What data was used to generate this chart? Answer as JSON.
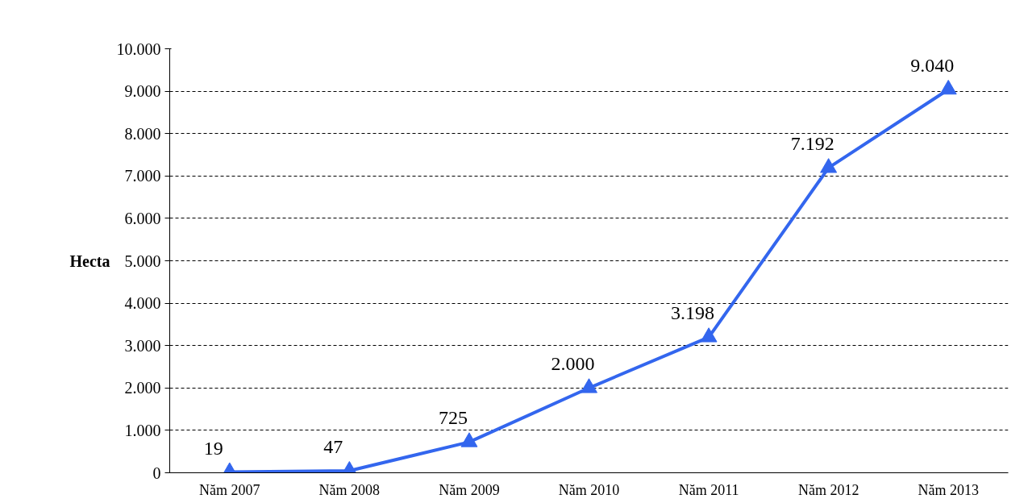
{
  "chart_data": {
    "type": "line",
    "ylabel": "Hecta",
    "categories": [
      "Năm 2007",
      "Năm 2008",
      "Năm 2009",
      "Năm 2010",
      "Năm 2011",
      "Năm 2012",
      "Năm 2013"
    ],
    "series": [
      {
        "color": "#3366ee",
        "values": [
          19,
          47,
          725,
          2000,
          3198,
          7192,
          9040
        ],
        "value_labels": [
          "19",
          "47",
          "725",
          "2.000",
          "3.198",
          "7.192",
          "9.040"
        ]
      }
    ],
    "ylim": [
      0,
      10000
    ],
    "yticks": [
      0,
      {
        "value": 1000,
        "label": "1.000"
      },
      {
        "value": 2000,
        "label": "2.000"
      },
      {
        "value": 3000,
        "label": "3.000"
      },
      {
        "value": 4000,
        "label": "4.000"
      },
      {
        "value": 5000,
        "label": "5.000"
      },
      {
        "value": 6000,
        "label": "6.000"
      },
      {
        "value": 7000,
        "label": "7.000"
      },
      {
        "value": 8000,
        "label": "8.000"
      },
      {
        "value": 9000,
        "label": "9.000"
      },
      {
        "value": 10000,
        "label": "10.000"
      }
    ],
    "grid": "y",
    "marker": "triangle",
    "line_style": "solid"
  }
}
